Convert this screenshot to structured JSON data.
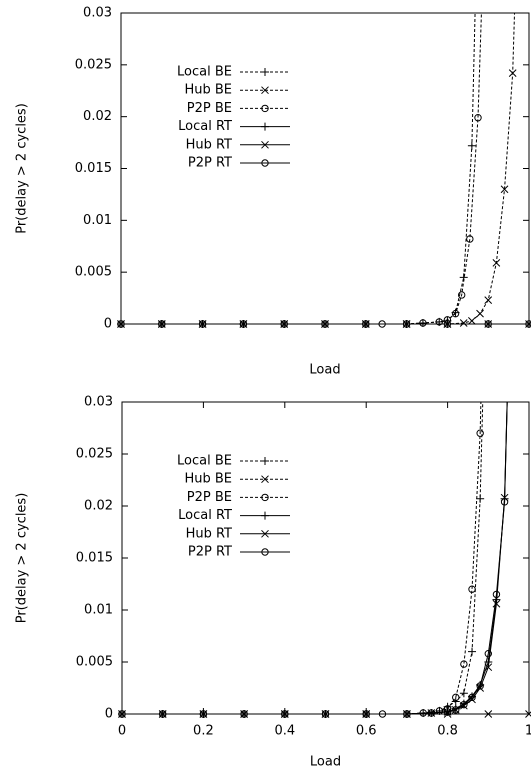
{
  "chart_data": [
    {
      "type": "line",
      "xlabel": "Load",
      "ylabel": "Pr(delay > 2 cycles)",
      "xlim": [
        0,
        1
      ],
      "ylim": [
        0,
        0.03
      ],
      "yticks": [
        0,
        0.005,
        0.01,
        0.015,
        0.02,
        0.025,
        0.03
      ],
      "legend": "upper left",
      "series": [
        {
          "name": "Local BE",
          "color": "#000000",
          "marker": "plus",
          "dashed": true,
          "x": [
            0,
            0.1,
            0.2,
            0.3,
            0.4,
            0.5,
            0.6,
            0.7,
            0.74,
            0.78,
            0.8,
            0.82,
            0.84,
            0.86,
            0.88
          ],
          "values": [
            0,
            0,
            0,
            0,
            0,
            0,
            0,
            0,
            0.0001,
            0.0002,
            0.0003,
            0.0011,
            0.0045,
            0.0172,
            0.05
          ]
        },
        {
          "name": "Hub BE",
          "color": "#000000",
          "marker": "cross",
          "dashed": true,
          "x": [
            0,
            0.1,
            0.2,
            0.3,
            0.4,
            0.5,
            0.6,
            0.7,
            0.8,
            0.84,
            0.86,
            0.88,
            0.9,
            0.92,
            0.94,
            0.96,
            0.98
          ],
          "values": [
            0,
            0,
            0,
            0,
            0,
            0,
            0,
            0,
            0,
            0.0001,
            0.0003,
            0.001,
            0.0023,
            0.0059,
            0.013,
            0.0242,
            0.05
          ]
        },
        {
          "name": "P2P BE",
          "color": "#000000",
          "marker": "circle",
          "dashed": true,
          "x": [
            0,
            0.1,
            0.2,
            0.3,
            0.4,
            0.5,
            0.6,
            0.64,
            0.7,
            0.74,
            0.78,
            0.8,
            0.82,
            0.835,
            0.855,
            0.875,
            0.9
          ],
          "values": [
            0,
            0,
            0,
            0,
            0,
            0,
            0,
            0,
            0,
            0.0001,
            0.0002,
            0.0004,
            0.001,
            0.0028,
            0.0082,
            0.0199,
            0.05
          ]
        },
        {
          "name": "Local RT",
          "color": "#000000",
          "marker": "plus",
          "dashed": false,
          "x": [
            0,
            0.1,
            0.2,
            0.3,
            0.4,
            0.5,
            0.6,
            0.7,
            0.8,
            0.9,
            1
          ],
          "values": [
            0,
            0,
            0,
            0,
            0,
            0,
            0,
            0,
            0,
            0,
            0
          ]
        },
        {
          "name": "Hub RT",
          "color": "#000000",
          "marker": "cross",
          "dashed": false,
          "x": [
            0,
            0.1,
            0.2,
            0.3,
            0.4,
            0.5,
            0.6,
            0.7,
            0.8,
            0.9,
            1
          ],
          "values": [
            0,
            0,
            0,
            0,
            0,
            0,
            0,
            0,
            0,
            0,
            0
          ]
        },
        {
          "name": "P2P RT",
          "color": "#000000",
          "marker": "circle",
          "dashed": false,
          "x": [
            0,
            0.1,
            0.2,
            0.3,
            0.4,
            0.5,
            0.6,
            0.7,
            0.8,
            0.9,
            1
          ],
          "values": [
            0,
            0,
            0,
            0,
            0,
            0,
            0,
            0,
            0,
            0,
            0
          ]
        }
      ]
    },
    {
      "type": "line",
      "xlabel": "Load",
      "ylabel": "Pr(delay > 2 cycles)",
      "xlim": [
        0,
        1
      ],
      "ylim": [
        0,
        0.03
      ],
      "xticks": [
        0,
        0.2,
        0.4,
        0.6,
        0.8,
        1
      ],
      "yticks": [
        0,
        0.005,
        0.01,
        0.015,
        0.02,
        0.025,
        0.03
      ],
      "legend": "upper left",
      "series": [
        {
          "name": "Local BE",
          "color": "#000000",
          "marker": "plus",
          "dashed": true,
          "x": [
            0,
            0.1,
            0.2,
            0.3,
            0.4,
            0.5,
            0.6,
            0.7,
            0.74,
            0.78,
            0.8,
            0.82,
            0.84,
            0.86,
            0.88,
            0.9
          ],
          "values": [
            0,
            0,
            0,
            0,
            0,
            0,
            0,
            0,
            0.0001,
            0.0003,
            0.0007,
            0.0012,
            0.002,
            0.006,
            0.0207,
            0.05
          ]
        },
        {
          "name": "Hub BE",
          "color": "#000000",
          "marker": "cross",
          "dashed": true,
          "x": [
            0,
            0.1,
            0.2,
            0.3,
            0.4,
            0.5,
            0.6,
            0.7,
            0.8,
            0.9,
            1
          ],
          "values": [
            0,
            0,
            0,
            0,
            0,
            0,
            0,
            0,
            0,
            0,
            0
          ]
        },
        {
          "name": "P2P BE",
          "color": "#000000",
          "marker": "circle",
          "dashed": true,
          "x": [
            0,
            0.1,
            0.2,
            0.3,
            0.4,
            0.5,
            0.6,
            0.64,
            0.7,
            0.74,
            0.78,
            0.8,
            0.82,
            0.84,
            0.86,
            0.88,
            0.9
          ],
          "values": [
            0,
            0,
            0,
            0,
            0,
            0,
            0,
            0,
            0,
            0.0001,
            0.0003,
            0.0005,
            0.0016,
            0.0048,
            0.012,
            0.027,
            0.06
          ]
        },
        {
          "name": "Local RT",
          "color": "#000000",
          "marker": "plus",
          "dashed": false,
          "x": [
            0,
            0.1,
            0.2,
            0.3,
            0.4,
            0.5,
            0.6,
            0.7,
            0.76,
            0.8,
            0.82,
            0.84,
            0.86,
            0.88,
            0.9,
            0.92,
            0.94,
            0.96
          ],
          "values": [
            0,
            0,
            0,
            0,
            0,
            0,
            0,
            0,
            0.0001,
            0.0002,
            0.0005,
            0.001,
            0.0017,
            0.0028,
            0.005,
            0.011,
            0.0207,
            0.05
          ]
        },
        {
          "name": "Hub RT",
          "color": "#000000",
          "marker": "cross",
          "dashed": false,
          "x": [
            0,
            0.1,
            0.2,
            0.3,
            0.4,
            0.5,
            0.6,
            0.7,
            0.76,
            0.8,
            0.82,
            0.84,
            0.86,
            0.88,
            0.9,
            0.92,
            0.94,
            0.96
          ],
          "values": [
            0,
            0,
            0,
            0,
            0,
            0,
            0,
            0,
            0.0001,
            0.0002,
            0.0004,
            0.0008,
            0.0014,
            0.0025,
            0.0045,
            0.0106,
            0.0208,
            0.05
          ]
        },
        {
          "name": "P2P RT",
          "color": "#000000",
          "marker": "circle",
          "dashed": false,
          "x": [
            0,
            0.1,
            0.2,
            0.3,
            0.4,
            0.5,
            0.6,
            0.7,
            0.76,
            0.8,
            0.82,
            0.84,
            0.86,
            0.88,
            0.9,
            0.92,
            0.94,
            0.96
          ],
          "values": [
            0,
            0,
            0,
            0,
            0,
            0,
            0,
            0,
            0.0001,
            0.0002,
            0.0004,
            0.0009,
            0.0016,
            0.0027,
            0.0058,
            0.0115,
            0.0204,
            0.05
          ]
        }
      ]
    }
  ]
}
